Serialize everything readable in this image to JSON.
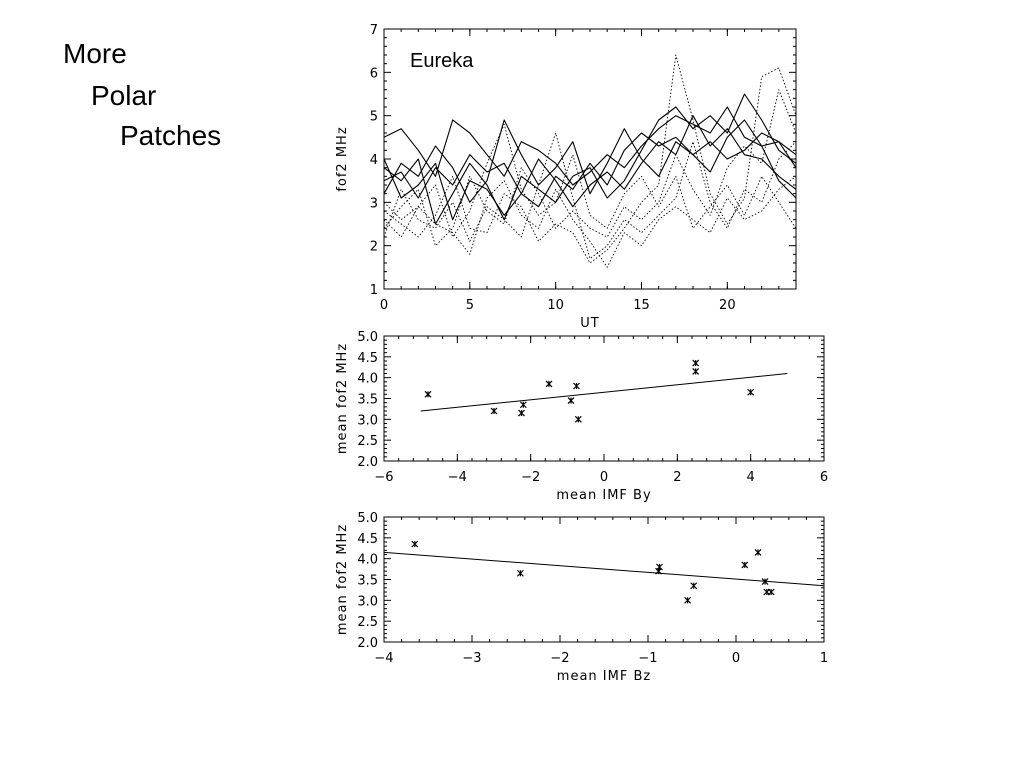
{
  "slide": {
    "title_lines": [
      "More",
      "Polar",
      "Patches"
    ]
  },
  "chart_data": [
    {
      "type": "line",
      "annotation": "Eureka",
      "xlabel": "UT",
      "ylabel": "fof2 MHz",
      "xlim": [
        0,
        24
      ],
      "ylim": [
        1,
        7
      ],
      "xticks": [
        "0",
        "5",
        "10",
        "15",
        "20"
      ],
      "yticks": [
        "1",
        "2",
        "3",
        "4",
        "5",
        "6",
        "7"
      ],
      "grid": false,
      "series": [
        {
          "style": "solid",
          "x": [
            0,
            1,
            2,
            3,
            4,
            5,
            6,
            7,
            8,
            9,
            10,
            11,
            12,
            13,
            14,
            15,
            16,
            17,
            18,
            19,
            20,
            21,
            22,
            23,
            24
          ],
          "values": [
            4.5,
            4.7,
            4.2,
            3.6,
            4.9,
            4.6,
            4.1,
            3.6,
            4.4,
            4.2,
            3.9,
            3.4,
            3.7,
            4.1,
            3.8,
            4.3,
            4.7,
            5.0,
            4.8,
            4.6,
            5.2,
            4.5,
            4.3,
            4.4,
            4.1
          ]
        },
        {
          "style": "solid",
          "x": [
            0,
            1,
            2,
            3,
            4,
            5,
            6,
            7,
            8,
            9,
            10,
            11,
            12,
            13,
            14,
            15,
            16,
            17,
            18,
            19,
            20,
            21,
            22,
            23,
            24
          ],
          "values": [
            3.8,
            3.5,
            4.0,
            2.5,
            3.2,
            3.9,
            3.4,
            2.6,
            3.6,
            3.3,
            3.0,
            3.6,
            3.8,
            3.1,
            3.5,
            4.2,
            4.9,
            5.2,
            4.7,
            5.0,
            4.6,
            5.5,
            4.9,
            4.2,
            3.9
          ]
        },
        {
          "style": "solid",
          "x": [
            0,
            1,
            2,
            3,
            4,
            5,
            6,
            7,
            8,
            9,
            10,
            11,
            12,
            13,
            14,
            15,
            16,
            17,
            18,
            19,
            20,
            21,
            22,
            23,
            24
          ],
          "values": [
            3.2,
            3.9,
            3.6,
            4.3,
            3.8,
            3.0,
            3.5,
            4.9,
            4.1,
            3.4,
            3.8,
            4.4,
            3.2,
            3.9,
            4.7,
            4.0,
            3.6,
            4.4,
            4.1,
            3.7,
            4.5,
            4.9,
            4.3,
            3.5,
            3.1
          ]
        },
        {
          "style": "solid",
          "x": [
            0,
            1,
            2,
            3,
            4,
            5,
            6,
            7,
            8,
            9,
            10,
            11,
            12,
            13,
            14,
            15,
            16,
            17,
            18,
            19,
            20,
            21,
            22,
            23,
            24
          ],
          "values": [
            4.0,
            3.1,
            3.4,
            3.9,
            2.6,
            3.5,
            3.3,
            2.7,
            3.2,
            2.9,
            3.6,
            3.3,
            3.9,
            3.4,
            4.2,
            4.6,
            4.3,
            4.5,
            4.1,
            4.4,
            4.0,
            4.2,
            4.6,
            4.4,
            3.8
          ]
        },
        {
          "style": "solid",
          "x": [
            0,
            1,
            2,
            3,
            4,
            5,
            6,
            7,
            8,
            9,
            10,
            11,
            12,
            13,
            14,
            15,
            16,
            17,
            18,
            19,
            20,
            21,
            22,
            23,
            24
          ],
          "values": [
            3.5,
            3.7,
            3.1,
            3.8,
            3.4,
            4.1,
            3.7,
            3.9,
            3.2,
            4.0,
            3.5,
            2.9,
            3.4,
            3.7,
            3.3,
            3.9,
            4.4,
            4.1,
            5.0,
            4.3,
            4.7,
            4.1,
            4.0,
            3.6,
            3.3
          ]
        },
        {
          "style": "dotted",
          "x": [
            0,
            1,
            2,
            3,
            4,
            5,
            6,
            7,
            8,
            9,
            10,
            11,
            12,
            13,
            14,
            15,
            16,
            17,
            18,
            19,
            20,
            21,
            22,
            23,
            24
          ],
          "values": [
            2.8,
            2.5,
            2.2,
            2.7,
            3.6,
            2.4,
            2.3,
            3.2,
            2.9,
            2.1,
            2.5,
            2.3,
            1.6,
            1.9,
            2.4,
            3.0,
            3.4,
            6.4,
            4.9,
            3.2,
            2.5,
            3.1,
            5.9,
            6.1,
            5.0
          ]
        },
        {
          "style": "dotted",
          "x": [
            0,
            1,
            2,
            3,
            4,
            5,
            6,
            7,
            8,
            9,
            10,
            11,
            12,
            13,
            14,
            15,
            16,
            17,
            18,
            19,
            20,
            21,
            22,
            23,
            24
          ],
          "values": [
            2.4,
            2.9,
            3.3,
            2.0,
            2.4,
            3.6,
            2.8,
            2.5,
            3.8,
            3.2,
            2.4,
            2.8,
            2.4,
            2.2,
            2.9,
            2.6,
            3.0,
            4.1,
            3.3,
            2.7,
            3.8,
            4.3,
            3.9,
            5.6,
            4.6
          ]
        },
        {
          "style": "dotted",
          "x": [
            0,
            1,
            2,
            3,
            4,
            5,
            6,
            7,
            8,
            9,
            10,
            11,
            12,
            13,
            14,
            15,
            16,
            17,
            18,
            19,
            20,
            21,
            22,
            23,
            24
          ],
          "values": [
            3.0,
            2.6,
            2.9,
            3.4,
            2.2,
            2.8,
            3.9,
            4.8,
            3.3,
            2.7,
            3.0,
            4.1,
            2.7,
            2.4,
            3.2,
            3.6,
            2.9,
            3.6,
            2.4,
            2.9,
            3.4,
            2.7,
            3.6,
            3.0,
            2.4
          ]
        },
        {
          "style": "dotted",
          "x": [
            0,
            1,
            2,
            3,
            4,
            5,
            6,
            7,
            8,
            9,
            10,
            11,
            12,
            13,
            14,
            15,
            16,
            17,
            18,
            19,
            20,
            21,
            22,
            23,
            24
          ],
          "values": [
            2.2,
            3.3,
            2.6,
            2.4,
            3.0,
            2.1,
            2.9,
            2.6,
            2.2,
            3.4,
            4.6,
            3.1,
            1.7,
            2.0,
            2.6,
            2.3,
            2.7,
            3.1,
            4.4,
            3.0,
            2.4,
            3.3,
            3.0,
            4.0,
            4.4
          ]
        },
        {
          "style": "dotted",
          "x": [
            0,
            1,
            2,
            3,
            4,
            5,
            6,
            7,
            8,
            9,
            10,
            11,
            12,
            13,
            14,
            15,
            16,
            17,
            18,
            19,
            20,
            21,
            22,
            23,
            24
          ],
          "values": [
            2.6,
            2.2,
            2.9,
            2.5,
            2.3,
            1.8,
            3.1,
            3.5,
            2.7,
            2.4,
            3.3,
            2.6,
            2.1,
            1.5,
            2.3,
            2.0,
            2.6,
            2.9,
            2.6,
            2.3,
            3.1,
            2.6,
            2.8,
            3.3,
            3.6
          ]
        }
      ]
    },
    {
      "type": "scatter",
      "xlabel": "mean IMF By",
      "ylabel": "mean fof2 MHz",
      "xlim": [
        -6,
        6
      ],
      "ylim": [
        2.0,
        5.0
      ],
      "xticks": [
        "−6",
        "−4",
        "−2",
        "0",
        "2",
        "4",
        "6"
      ],
      "yticks": [
        "2.0",
        "2.5",
        "3.0",
        "3.5",
        "4.0",
        "4.5",
        "5.0"
      ],
      "grid": false,
      "points": {
        "x": [
          -4.8,
          -3.0,
          -2.2,
          -2.25,
          -1.5,
          -0.9,
          -0.75,
          -0.7,
          2.5,
          2.5,
          4.0
        ],
        "y": [
          3.6,
          3.2,
          3.35,
          3.15,
          3.85,
          3.45,
          3.8,
          3.0,
          4.35,
          4.15,
          3.65
        ]
      },
      "fit_line": {
        "x": [
          -5,
          5
        ],
        "y": [
          3.2,
          4.1
        ]
      }
    },
    {
      "type": "scatter",
      "xlabel": "mean IMF Bz",
      "ylabel": "mean fof2 MHz",
      "xlim": [
        -4,
        1
      ],
      "ylim": [
        2.0,
        5.0
      ],
      "xticks": [
        "−4",
        "−3",
        "−2",
        "−1",
        "0",
        "1"
      ],
      "yticks": [
        "2.0",
        "2.5",
        "3.0",
        "3.5",
        "4.0",
        "4.5",
        "5.0"
      ],
      "grid": false,
      "points": {
        "x": [
          -3.65,
          -2.45,
          -0.88,
          -0.87,
          -0.55,
          -0.48,
          0.1,
          0.25,
          0.33,
          0.35,
          0.4
        ],
        "y": [
          4.35,
          3.65,
          3.7,
          3.8,
          3.0,
          3.35,
          3.85,
          4.15,
          3.45,
          3.2,
          3.2
        ]
      },
      "fit_line": {
        "x": [
          -4,
          1
        ],
        "y": [
          4.15,
          3.35
        ]
      }
    }
  ]
}
